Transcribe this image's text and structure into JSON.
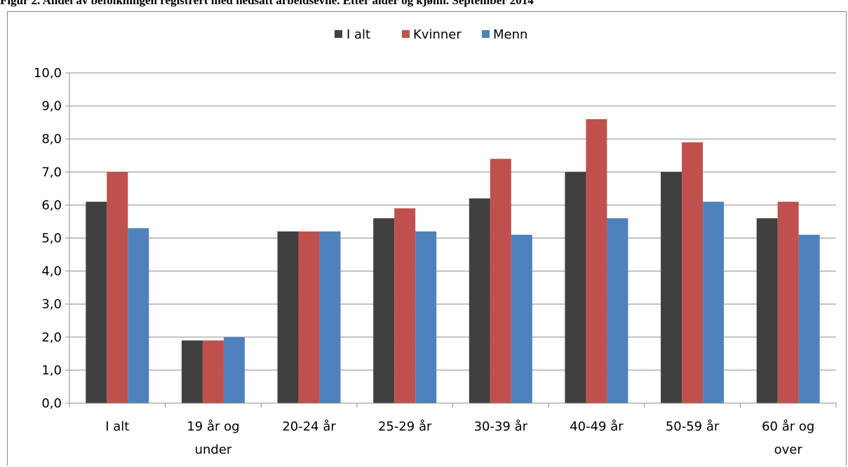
{
  "title": "Figur 2. Andel av befolkningen registrert med nedsatt arbeidsevne. Etter alder og kjønn. September 2014",
  "chart_data": {
    "type": "bar",
    "categories": [
      [
        "I alt"
      ],
      [
        "19 år og",
        "under"
      ],
      [
        "20-24 år"
      ],
      [
        "25-29 år"
      ],
      [
        "30-39 år"
      ],
      [
        "40-49 år"
      ],
      [
        "50-59 år"
      ],
      [
        "60 år og",
        "over"
      ]
    ],
    "series": [
      {
        "name": "I alt",
        "color": "#404040",
        "values": [
          6.1,
          1.9,
          5.2,
          5.6,
          6.2,
          7.0,
          7.0,
          5.6
        ]
      },
      {
        "name": "Kvinner",
        "color": "#c0504d",
        "values": [
          7.0,
          1.9,
          5.2,
          5.9,
          7.4,
          8.6,
          7.9,
          6.1
        ]
      },
      {
        "name": "Menn",
        "color": "#4f81bd",
        "values": [
          5.3,
          2.0,
          5.2,
          5.2,
          5.1,
          5.6,
          6.1,
          5.1
        ]
      }
    ],
    "ylim": [
      0,
      10
    ],
    "yticks": [
      "0,0",
      "1,0",
      "2,0",
      "3,0",
      "4,0",
      "5,0",
      "6,0",
      "7,0",
      "8,0",
      "9,0",
      "10,0"
    ],
    "grid": true,
    "legend_position": "top-center",
    "xlabel": "",
    "ylabel": ""
  }
}
